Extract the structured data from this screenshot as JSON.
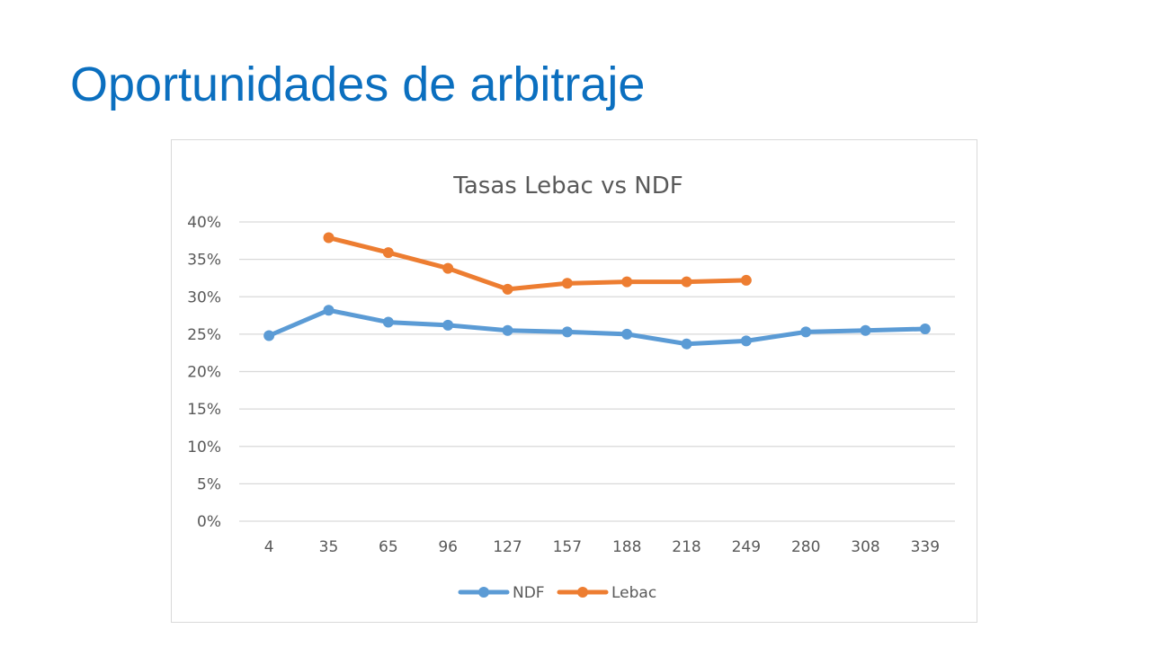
{
  "slide": {
    "title": "Oportunidades de arbitraje",
    "title_color": "#0b6fbf"
  },
  "chart_data": {
    "type": "line",
    "title": "Tasas Lebac vs NDF",
    "categories": [
      "4",
      "35",
      "65",
      "96",
      "127",
      "157",
      "188",
      "218",
      "249",
      "280",
      "308",
      "339"
    ],
    "y_ticks": [
      "0%",
      "5%",
      "10%",
      "15%",
      "20%",
      "25%",
      "30%",
      "35%",
      "40%"
    ],
    "ylim": [
      0,
      40
    ],
    "y_unit": "%",
    "grid": true,
    "legend_position": "bottom",
    "series": [
      {
        "name": "NDF",
        "color": "#5b9bd5",
        "values": [
          24.8,
          28.2,
          26.6,
          26.2,
          25.5,
          25.3,
          25.0,
          23.7,
          24.1,
          25.3,
          25.5,
          25.7
        ]
      },
      {
        "name": "Lebac",
        "color": "#ed7d31",
        "values": [
          null,
          37.9,
          35.9,
          33.8,
          31.0,
          31.8,
          32.0,
          32.0,
          32.2,
          null,
          null,
          null
        ]
      }
    ]
  }
}
